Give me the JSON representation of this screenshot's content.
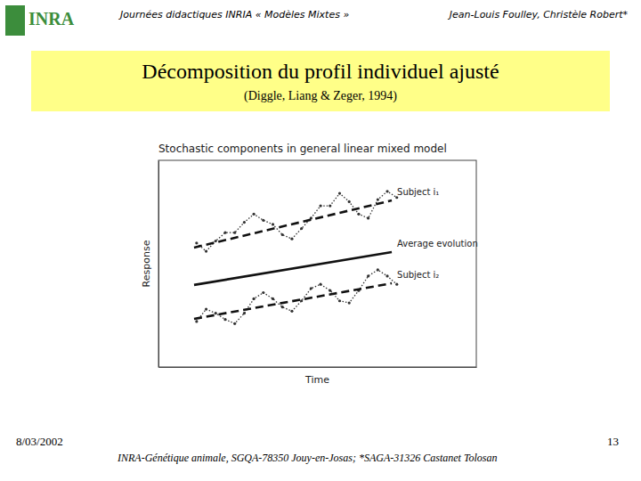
{
  "slide": {
    "logo": "INRA",
    "header": "Journées didactiques INRIA « Modèles Mixtes »",
    "authors": "Jean-Louis Foulley, Christèle Robert*",
    "title": "Décomposition du profil individuel ajusté",
    "subtitle": "(Diggle, Liang & Zeger, 1994)",
    "date": "8/03/2002",
    "footer": "INRA-Génétique animale, SGQA-78350 Jouy-en-Josas; *SAGA-31326 Castanet Tolosan",
    "page": "13"
  },
  "chart_data": {
    "type": "line",
    "title": "Stochastic components in general linear mixed model",
    "x_label": "Time",
    "y_label": "Response",
    "xlim": [
      0,
      100
    ],
    "ylim": [
      0,
      100
    ],
    "tick_labels": false,
    "grid": false,
    "series": [
      {
        "color": "#333333",
        "line_style": "dotted",
        "marker": "point",
        "x": [
          12,
          15,
          18,
          21,
          24,
          27,
          30,
          33,
          36,
          39,
          42,
          45,
          48,
          51,
          54,
          57,
          60,
          63,
          66,
          69,
          72,
          75
        ],
        "values": [
          60,
          56,
          61,
          65,
          65,
          70,
          74,
          71,
          69,
          64,
          62,
          67,
          72,
          78,
          78,
          84,
          80,
          74,
          72,
          81,
          85,
          82
        ]
      },
      {
        "name": "Subject i₁",
        "color": "#111111",
        "line_style": "dashed",
        "x": [
          11.2,
          73.4
        ],
        "values": [
          57.8,
          80.6
        ]
      },
      {
        "name": "Average evolution",
        "color": "#111111",
        "line_style": "solid",
        "x": [
          11.2,
          73.4
        ],
        "values": [
          39.7,
          55.6
        ]
      },
      {
        "color": "#333333",
        "line_style": "dotted",
        "marker": "point",
        "x": [
          12,
          15,
          18,
          21,
          24,
          27,
          30,
          33,
          36,
          39,
          42,
          45,
          48,
          51,
          54,
          57,
          60,
          63,
          66,
          69,
          72,
          75
        ],
        "values": [
          22,
          28,
          26,
          23,
          21,
          26,
          33,
          36,
          33,
          29,
          27,
          32,
          38,
          40,
          37,
          32,
          31,
          37,
          44,
          47,
          44,
          40
        ]
      },
      {
        "name": "Subject i₂",
        "color": "#111111",
        "line_style": "dashed",
        "x": [
          11.2,
          73.4
        ],
        "values": [
          23.3,
          40.5
        ]
      }
    ]
  }
}
